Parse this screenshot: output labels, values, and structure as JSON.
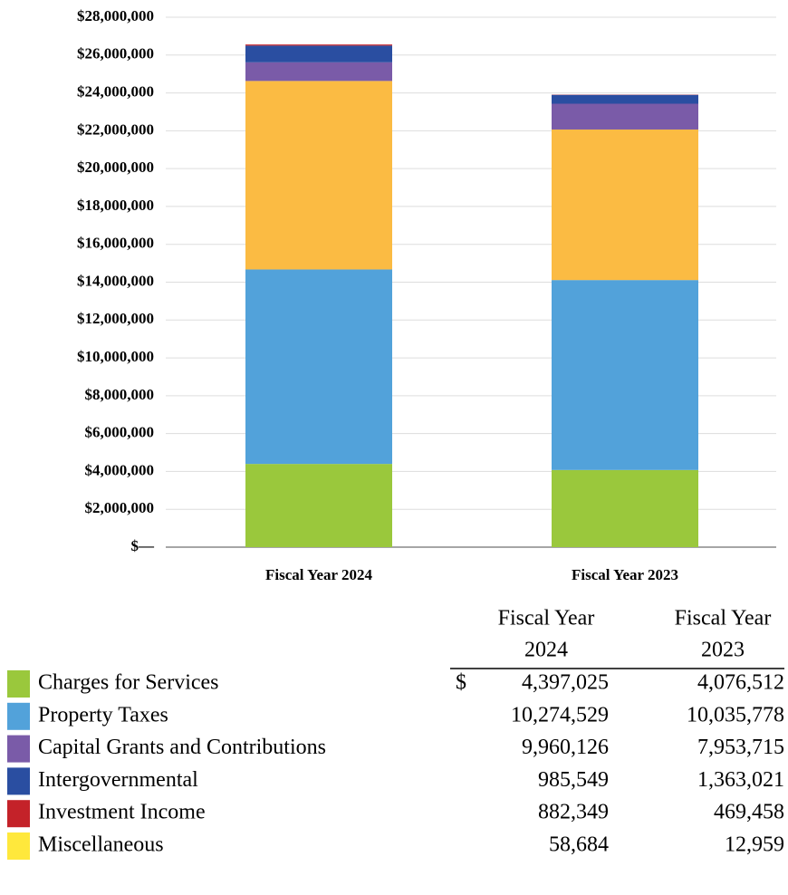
{
  "chart_data": {
    "type": "stacked_bar",
    "categories": [
      "Fiscal Year 2024",
      "Fiscal Year 2023"
    ],
    "series": [
      {
        "name": "Charges for Services",
        "color": "#9ac83c",
        "swatch": "#9ac83c",
        "values": [
          4397025,
          4076512
        ],
        "value_labels": [
          "4,397,025",
          "4,076,512"
        ]
      },
      {
        "name": "Property Taxes",
        "color": "#52a2da",
        "swatch": "#52a2da",
        "values": [
          10274529,
          10035778
        ],
        "value_labels": [
          "10,274,529",
          "10,035,778"
        ]
      },
      {
        "name": "Capital Grants and Contributions",
        "color": "#fbbb43",
        "swatch": "#7a5ba8",
        "values": [
          9960126,
          7953715
        ],
        "value_labels": [
          "9,960,126",
          "7,953,715"
        ]
      },
      {
        "name": "Intergovernmental",
        "color": "#7a5ba8",
        "swatch": "#2a4ea1",
        "values": [
          985549,
          1363021
        ],
        "value_labels": [
          "985,549",
          "1,363,021"
        ]
      },
      {
        "name": "Investment Income",
        "color": "#2a4ea1",
        "swatch": "#c42229",
        "values": [
          882349,
          469458
        ],
        "value_labels": [
          "882,349",
          "469,458"
        ]
      },
      {
        "name": "Miscellaneous",
        "color": "#c42229",
        "swatch": "#ffe83c",
        "values": [
          58684,
          12959
        ],
        "value_labels": [
          "58,684",
          "12,959"
        ]
      }
    ],
    "ylim": [
      0,
      28000000
    ],
    "yticks": [
      {
        "value": 0,
        "label": "$—"
      },
      {
        "value": 2000000,
        "label": "$2,000,000"
      },
      {
        "value": 4000000,
        "label": "$4,000,000"
      },
      {
        "value": 6000000,
        "label": "$6,000,000"
      },
      {
        "value": 8000000,
        "label": "$8,000,000"
      },
      {
        "value": 10000000,
        "label": "$10,000,000"
      },
      {
        "value": 12000000,
        "label": "$12,000,000"
      },
      {
        "value": 14000000,
        "label": "$14,000,000"
      },
      {
        "value": 16000000,
        "label": "$16,000,000"
      },
      {
        "value": 18000000,
        "label": "$18,000,000"
      },
      {
        "value": 20000000,
        "label": "$20,000,000"
      },
      {
        "value": 22000000,
        "label": "$22,000,000"
      },
      {
        "value": 24000000,
        "label": "$24,000,000"
      },
      {
        "value": 26000000,
        "label": "$26,000,000"
      },
      {
        "value": 28000000,
        "label": "$28,000,000"
      }
    ],
    "grid": true
  },
  "table": {
    "header": [
      [
        "Fiscal Year",
        "2024"
      ],
      [
        "Fiscal Year",
        "2023"
      ]
    ],
    "currency": "$"
  }
}
